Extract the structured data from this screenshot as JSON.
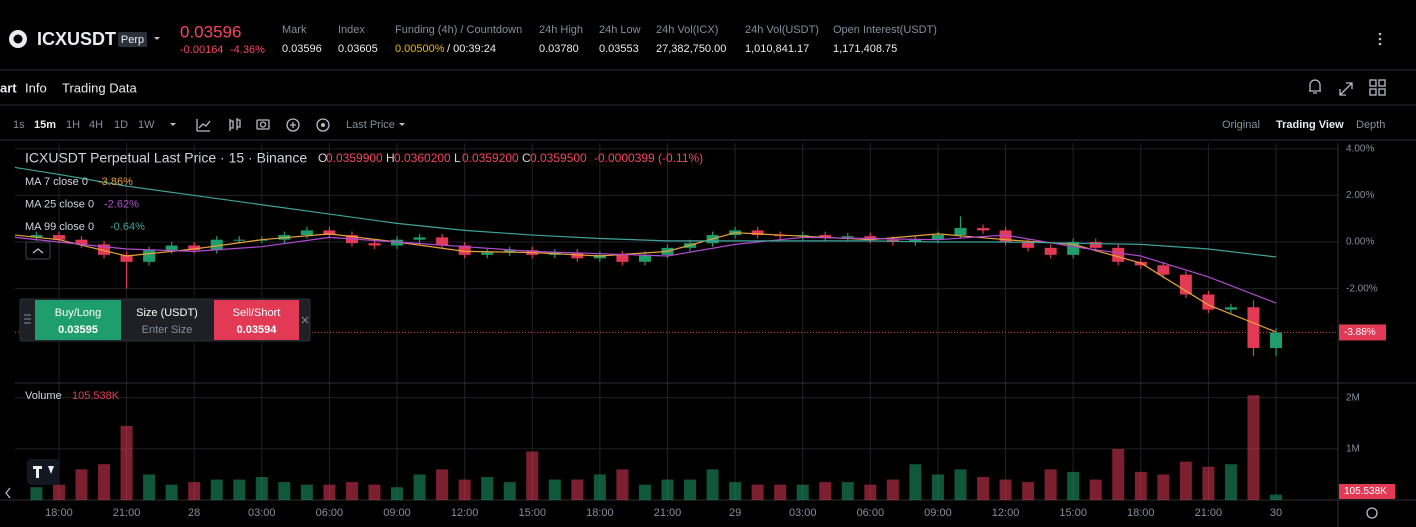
{
  "header": {
    "symbol": "ICXUSDT",
    "badge": "Perp",
    "price": "0.03596",
    "change": "-0.00164",
    "change_pct": "-4.36%",
    "stats": [
      {
        "label": "Mark",
        "value": "0.03596"
      },
      {
        "label": "Index",
        "value": "0.03605"
      },
      {
        "label": "Funding (4h) / Countdown",
        "value": "0.00500%",
        "value2": "/ 00:39:24"
      },
      {
        "label": "24h High",
        "value": "0.03780"
      },
      {
        "label": "24h Low",
        "value": "0.03553"
      },
      {
        "label": "24h Vol(ICX)",
        "value": "27,382,750.00"
      },
      {
        "label": "24h Vol(USDT)",
        "value": "1,010,841.17"
      },
      {
        "label": "Open Interest(USDT)",
        "value": "1,171,408.75"
      }
    ]
  },
  "tabs": [
    "art",
    "Info",
    "Trading Data"
  ],
  "toolbar": {
    "intervals": [
      "1s",
      "15m",
      "1H",
      "4H",
      "1D",
      "1W"
    ],
    "price_type": "Last Price",
    "views": [
      "Original",
      "Trading View",
      "Depth"
    ]
  },
  "legend": {
    "title": "ICXUSDT Perpetual Last Price · 15 · Binance",
    "ohlc": [
      {
        "label": "O",
        "value": "0.0359900"
      },
      {
        "label": "H",
        "value": "0.0360200"
      },
      {
        "label": "L",
        "value": "0.0359200"
      },
      {
        "label": "C",
        "value": "0.0359500"
      }
    ],
    "change": "-0.0000399 (-0.11%)"
  },
  "trade": {
    "buy_label": "Buy/Long",
    "buy_price": "0.03595",
    "size_label": "Size (USDT)",
    "size_placeholder": "Enter Size",
    "sell_label": "Sell/Short",
    "sell_price": "0.03594"
  },
  "chart_data": {
    "type": "candlestick",
    "up_color": "#1e9e6c",
    "down_color": "#e23a55",
    "grid": true,
    "x": [
      -1,
      0,
      1,
      2,
      3,
      4,
      5,
      6,
      7,
      8,
      9,
      10,
      11,
      12,
      13,
      14,
      15,
      16,
      17,
      18,
      19,
      20,
      21,
      22,
      23,
      24,
      25,
      26,
      27,
      28,
      29,
      30,
      31,
      32,
      33,
      34,
      35,
      36,
      37,
      38,
      39,
      40,
      41,
      42,
      43,
      44,
      45,
      46,
      47,
      48,
      49,
      50,
      51,
      52,
      53,
      54
    ],
    "open": [
      0.2,
      0.3,
      0.1,
      -0.1,
      -0.55,
      -0.85,
      -0.35,
      -0.15,
      -0.35,
      0.1,
      0.1,
      0.1,
      0.3,
      0.5,
      0.3,
      -0.05,
      -0.15,
      0.1,
      0.2,
      -0.15,
      -0.55,
      -0.45,
      -0.35,
      -0.55,
      -0.45,
      -0.7,
      -0.55,
      -0.85,
      -0.55,
      -0.25,
      -0.05,
      0.3,
      0.5,
      0.3,
      0.25,
      0.3,
      0.2,
      0.25,
      0.1,
      0,
      0.1,
      0.3,
      0.6,
      0.5,
      0,
      -0.25,
      -0.55,
      0,
      -0.25,
      -0.85,
      -1.0,
      -1.4,
      -2.25,
      -2.9,
      -2.8,
      -4.55
    ],
    "high": [
      0.45,
      0.45,
      0.25,
      0.05,
      -0.4,
      -0.2,
      0,
      0,
      0.25,
      0.25,
      0.25,
      0.45,
      0.65,
      0.65,
      0.45,
      0.1,
      0.25,
      0.35,
      0.35,
      0,
      -0.3,
      -0.2,
      -0.2,
      -0.3,
      -0.3,
      -0.4,
      -0.4,
      -0.4,
      -0.1,
      0.1,
      0.45,
      0.65,
      0.65,
      0.45,
      0.45,
      0.45,
      0.4,
      0.4,
      0.25,
      0.25,
      0.45,
      1.1,
      0.75,
      0.65,
      0.15,
      -0.1,
      0.15,
      0.15,
      -0.1,
      -0.7,
      -0.85,
      -1.25,
      -2.1,
      -2.65,
      -2.5,
      -3.7
    ],
    "low": [
      0.05,
      -0.05,
      -0.25,
      -0.7,
      -2.0,
      -1.0,
      -0.5,
      -0.5,
      -0.5,
      -0.05,
      -0.05,
      -0.05,
      0.15,
      0.15,
      -0.2,
      -0.3,
      -0.3,
      -0.05,
      -0.3,
      -0.7,
      -0.7,
      -0.6,
      -0.7,
      -0.7,
      -0.85,
      -0.85,
      -1.0,
      -1.0,
      -0.7,
      -0.4,
      -0.2,
      0.15,
      0.15,
      0.1,
      0.1,
      0.05,
      0.05,
      -0.05,
      -0.15,
      -0.15,
      -0.05,
      0.15,
      0.35,
      -0.15,
      -0.4,
      -0.7,
      -0.7,
      -0.4,
      -1.0,
      -1.15,
      -1.55,
      -2.4,
      -3.05,
      -3.05,
      -4.9,
      -4.9
    ],
    "close": [
      0.3,
      0.1,
      -0.1,
      -0.55,
      -0.85,
      -0.35,
      -0.15,
      -0.35,
      0.1,
      0.1,
      0.1,
      0.3,
      0.5,
      0.3,
      -0.05,
      -0.15,
      0.1,
      0.2,
      -0.15,
      -0.55,
      -0.45,
      -0.35,
      -0.55,
      -0.45,
      -0.7,
      -0.55,
      -0.85,
      -0.55,
      -0.25,
      -0.05,
      0.3,
      0.5,
      0.3,
      0.25,
      0.3,
      0.2,
      0.25,
      0.1,
      0,
      0.1,
      0.3,
      0.6,
      0.5,
      0,
      -0.25,
      -0.55,
      0,
      -0.25,
      -0.85,
      -1.0,
      -1.4,
      -2.25,
      -2.9,
      -2.8,
      -4.55,
      -3.88
    ],
    "xlim": [
      -1.95,
      56.75
    ],
    "xticks": [
      {
        "value": 0,
        "label": "18:00"
      },
      {
        "value": 3,
        "label": "21:00"
      },
      {
        "value": 6,
        "label": "28"
      },
      {
        "value": 9,
        "label": "03:00"
      },
      {
        "value": 12,
        "label": "06:00"
      },
      {
        "value": 15,
        "label": "09:00"
      },
      {
        "value": 18,
        "label": "12:00"
      },
      {
        "value": 21,
        "label": "15:00"
      },
      {
        "value": 24,
        "label": "18:00"
      },
      {
        "value": 27,
        "label": "21:00"
      },
      {
        "value": 30,
        "label": "29"
      },
      {
        "value": 33,
        "label": "03:00"
      },
      {
        "value": 36,
        "label": "06:00"
      },
      {
        "value": 39,
        "label": "09:00"
      },
      {
        "value": 42,
        "label": "12:00"
      },
      {
        "value": 45,
        "label": "15:00"
      },
      {
        "value": 48,
        "label": "18:00"
      },
      {
        "value": 51,
        "label": "21:00"
      },
      {
        "value": 54,
        "label": "30"
      }
    ],
    "ylim": [
      -6.05,
      4.25
    ],
    "yticks": [
      {
        "value": 4,
        "label": "4.00%"
      },
      {
        "value": 2,
        "label": "2.00%"
      },
      {
        "value": 0,
        "label": "0.00%"
      },
      {
        "value": -2,
        "label": "-2.00%"
      }
    ],
    "ma": [
      {
        "name": "MA 7 close 0",
        "color": "#e8a23a",
        "value_label": "-3.86%",
        "x": [
          -1.95,
          0,
          3,
          6,
          9,
          12,
          15,
          18,
          21,
          24,
          27,
          30,
          33,
          36,
          39,
          42,
          45,
          48,
          51,
          54
        ],
        "values": [
          0.3,
          0.1,
          -0.6,
          -0.3,
          0.1,
          0.35,
          0,
          -0.4,
          -0.45,
          -0.6,
          -0.4,
          0.4,
          0.25,
          0.1,
          0.35,
          0.1,
          -0.1,
          -0.9,
          -2.7,
          -3.86
        ]
      },
      {
        "name": "MA 25 close 0",
        "color": "#b04bd0",
        "value_label": "-2.62%",
        "x": [
          -1.95,
          0,
          3,
          6,
          9,
          12,
          15,
          18,
          21,
          24,
          27,
          30,
          33,
          36,
          39,
          42,
          45,
          48,
          51,
          54
        ],
        "values": [
          0.2,
          0,
          -0.3,
          -0.4,
          -0.2,
          0.2,
          0,
          -0.2,
          -0.4,
          -0.5,
          -0.6,
          -0.1,
          0.2,
          0.15,
          0.1,
          0.3,
          -0.2,
          -0.6,
          -1.5,
          -2.62
        ]
      },
      {
        "name": "MA 99 close 0",
        "color": "#3fa39a",
        "value_label": "-0.64%",
        "x": [
          -1.95,
          0,
          3,
          6,
          9,
          12,
          15,
          18,
          21,
          24,
          27,
          30,
          33,
          36,
          39,
          42,
          45,
          48,
          51,
          54
        ],
        "values": [
          3.2,
          2.9,
          2.4,
          2.0,
          1.6,
          1.2,
          0.8,
          0.5,
          0.3,
          0.15,
          0.05,
          0.05,
          0.05,
          0.05,
          0,
          0,
          -0.05,
          -0.1,
          -0.3,
          -0.64
        ]
      }
    ],
    "last_price": {
      "value": -3.88,
      "label": "-3.88%"
    },
    "volume": {
      "name": "Volume",
      "ylim": [
        0,
        2.25
      ],
      "yticks": [
        {
          "value": 2,
          "label": "2M"
        },
        {
          "value": 1,
          "label": "1M"
        }
      ],
      "values": [
        0.25,
        0.3,
        0.6,
        0.7,
        1.45,
        0.5,
        0.3,
        0.35,
        0.4,
        0.4,
        0.45,
        0.35,
        0.3,
        0.3,
        0.35,
        0.3,
        0.25,
        0.5,
        0.6,
        0.4,
        0.45,
        0.35,
        0.95,
        0.4,
        0.4,
        0.5,
        0.6,
        0.3,
        0.4,
        0.4,
        0.6,
        0.35,
        0.3,
        0.3,
        0.3,
        0.35,
        0.35,
        0.3,
        0.4,
        0.7,
        0.5,
        0.6,
        0.45,
        0.4,
        0.35,
        0.6,
        0.55,
        0.4,
        1.0,
        0.55,
        0.5,
        0.75,
        0.65,
        0.7,
        2.05,
        0.105538
      ],
      "last": {
        "value": 0.105538,
        "label": "105.538K"
      }
    }
  }
}
